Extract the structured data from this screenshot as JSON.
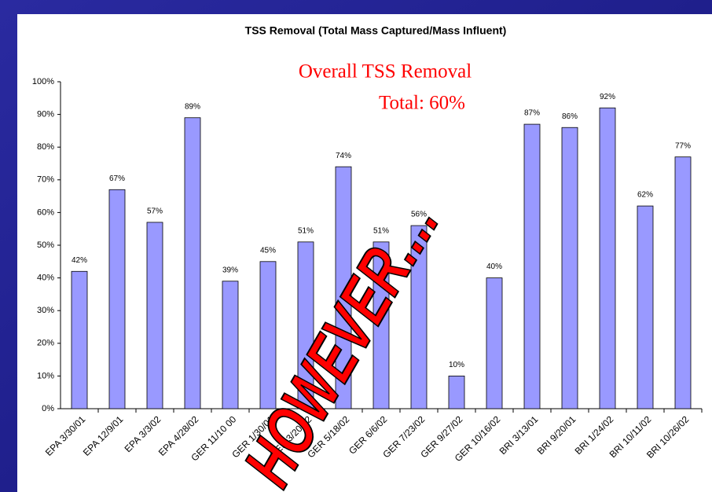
{
  "chart_data": {
    "type": "bar",
    "title": "TSS Removal (Total Mass Captured/Mass Influent)",
    "annotations": [
      "Overall TSS Removal",
      "Total: 60%",
      "HOWEVER...."
    ],
    "categories": [
      "EPA 3/30/01",
      "EPA 12/9/01",
      "EPA 3/3/02",
      "EPA 4/28/02",
      "GER 11/10 00",
      "GER 1/30/01",
      "GER 3/20/02",
      "GER 5/18/02",
      "GER 6/6/02",
      "GER 7/23/02",
      "GER 9/27/02",
      "GER 10/16/02",
      "BRI 3/13/01",
      "BRI 9/20/01",
      "BRI 1/24/02",
      "BRI 10/11/02",
      "BRI 10/26/02"
    ],
    "values": [
      42,
      67,
      57,
      89,
      39,
      45,
      51,
      74,
      51,
      56,
      10,
      40,
      87,
      86,
      92,
      62,
      77
    ],
    "value_labels": [
      "42%",
      "67%",
      "57%",
      "89%",
      "39%",
      "45%",
      "51%",
      "74%",
      "51%",
      "56%",
      "10%",
      "40%",
      "87%",
      "86%",
      "92%",
      "62%",
      "77%"
    ],
    "color": "#9999ff",
    "ylim": [
      0,
      100
    ],
    "yticks": [
      {
        "value": 0,
        "label": "0%"
      },
      {
        "value": 10,
        "label": "10%"
      },
      {
        "value": 20,
        "label": "20%"
      },
      {
        "value": 30,
        "label": "30%"
      },
      {
        "value": 40,
        "label": "40%"
      },
      {
        "value": 50,
        "label": "50%"
      },
      {
        "value": 60,
        "label": "60%"
      },
      {
        "value": 70,
        "label": "70%"
      },
      {
        "value": 80,
        "label": "80%"
      },
      {
        "value": 90,
        "label": "90%"
      },
      {
        "value": 100,
        "label": "100%"
      }
    ],
    "grid": false
  }
}
